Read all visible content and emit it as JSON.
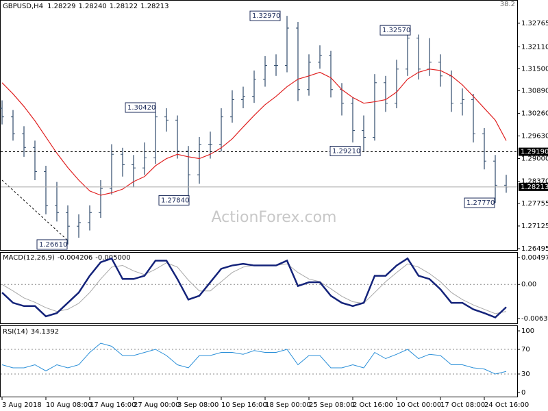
{
  "chart_data": [
    {
      "type": "ohlc",
      "title": "GBPUSD,H4",
      "quote": [
        "1.28229",
        "1.28240",
        "1.28122",
        "1.28213"
      ],
      "corner_label": "38.2",
      "watermark": "ActionForex.com",
      "color": "#2e4a6b",
      "categories": [
        "3 Aug 2018",
        null,
        null,
        null,
        "10 Aug 08:00",
        null,
        null,
        null,
        "17 Aug 16:00",
        null,
        null,
        null,
        "27 Aug 00:00",
        null,
        null,
        null,
        "3 Sep 08:00",
        null,
        null,
        null,
        "10 Sep 16:00",
        null,
        null,
        null,
        "18 Sep 00:00",
        null,
        null,
        null,
        "25 Sep 08:00",
        null,
        null,
        null,
        "2 Oct 16:00",
        null,
        null,
        null,
        "10 Oct 00:00",
        null,
        null,
        null,
        "17 Oct 08:00",
        null,
        null,
        null,
        "24 Oct 16:00",
        null,
        null
      ],
      "open": [
        1.304,
        1.3016,
        1.2969,
        1.2931,
        1.2864,
        1.2769,
        1.275,
        1.2712,
        1.2722,
        1.275,
        1.2817,
        1.2912,
        1.2883,
        1.2874,
        1.2902,
        1.3016,
        1.3007,
        1.2921,
        1.2855,
        1.294,
        1.294,
        1.3016,
        1.3064,
        1.3073,
        1.3121,
        1.3159,
        1.3159,
        1.3263,
        1.3092,
        1.3168,
        1.3187,
        1.3092,
        1.3054,
        1.2978,
        1.2959,
        1.3111,
        1.3054,
        1.3149,
        1.3235,
        1.3149,
        1.3168,
        1.313,
        1.3054,
        1.3064,
        1.2969,
        1.2893,
        1.2826
      ],
      "high": [
        1.3062,
        1.3035,
        1.299,
        1.295,
        1.288,
        1.2835,
        1.277,
        1.2745,
        1.277,
        1.284,
        1.294,
        1.293,
        1.291,
        1.2945,
        1.3042,
        1.304,
        1.302,
        1.2935,
        1.296,
        1.2975,
        1.304,
        1.309,
        1.31,
        1.3145,
        1.3185,
        1.319,
        1.3297,
        1.328,
        1.319,
        1.3215,
        1.32,
        1.311,
        1.307,
        1.302,
        1.3135,
        1.313,
        1.3175,
        1.3257,
        1.3245,
        1.3235,
        1.319,
        1.3145,
        1.3095,
        1.308,
        1.2985,
        1.291,
        1.2855
      ],
      "low": [
        1.2995,
        1.295,
        1.2905,
        1.284,
        1.2745,
        1.2725,
        1.2661,
        1.268,
        1.27,
        1.2735,
        1.28,
        1.285,
        1.282,
        1.2855,
        1.2885,
        1.2975,
        1.29,
        1.2784,
        1.283,
        1.29,
        1.292,
        1.3,
        1.304,
        1.3055,
        1.31,
        1.313,
        1.314,
        1.306,
        1.3075,
        1.315,
        1.307,
        1.302,
        1.2945,
        1.2921,
        1.295,
        1.303,
        1.304,
        1.313,
        1.312,
        1.313,
        1.31,
        1.303,
        1.302,
        1.2945,
        1.287,
        1.2777,
        1.2805
      ],
      "close": [
        1.3016,
        1.2969,
        1.2931,
        1.2864,
        1.2769,
        1.275,
        1.2712,
        1.2722,
        1.275,
        1.2817,
        1.2912,
        1.2883,
        1.2874,
        1.2902,
        1.3016,
        1.3007,
        1.2921,
        1.2855,
        1.294,
        1.294,
        1.3016,
        1.3064,
        1.3073,
        1.3121,
        1.3159,
        1.3159,
        1.3263,
        1.3092,
        1.3168,
        1.3187,
        1.3092,
        1.3054,
        1.2978,
        1.2959,
        1.3111,
        1.3054,
        1.3149,
        1.3235,
        1.3149,
        1.3168,
        1.313,
        1.3054,
        1.3064,
        1.2969,
        1.2893,
        1.2826,
        1.2821
      ],
      "ma": {
        "color": "#e02020",
        "values": [
          1.3111,
          1.308,
          1.3045,
          1.3005,
          1.296,
          1.2915,
          1.2875,
          1.284,
          1.281,
          1.2798,
          1.2805,
          1.2815,
          1.2836,
          1.285,
          1.288,
          1.29,
          1.2912,
          1.2905,
          1.29,
          1.2912,
          1.293,
          1.2955,
          1.2988,
          1.302,
          1.305,
          1.3073,
          1.31,
          1.3121,
          1.313,
          1.314,
          1.3125,
          1.3092,
          1.307,
          1.3054,
          1.3058,
          1.3064,
          1.3085,
          1.3121,
          1.314,
          1.3149,
          1.3145,
          1.313,
          1.3105,
          1.3073,
          1.304,
          1.3007,
          1.295
        ]
      },
      "ylim": [
        1.26457,
        1.33392
      ],
      "yticks": [
        1.32765,
        {
          "value": 1.3211,
          "label": "1.32110"
        },
        {
          "value": 1.315,
          "label": "1.31500"
        },
        {
          "value": 1.3089,
          "label": "1.30890"
        },
        {
          "value": 1.3026,
          "label": "1.30260"
        },
        {
          "value": 1.2963,
          "label": "1.29630"
        },
        {
          "value": 1.29,
          "label": "1.29000"
        },
        {
          "value": 1.2837,
          "label": "1.28370"
        },
        1.27755,
        1.27125,
        1.26495
      ],
      "annotations": [
        {
          "value": 1.3297,
          "label": "1.32970"
        },
        {
          "value": 1.3257,
          "label": "1.32570"
        },
        {
          "value": 1.3042,
          "label": "1.30420"
        },
        {
          "value": 1.2921,
          "label": "1.29210"
        },
        {
          "value": 1.2784,
          "label": "1.27840"
        },
        {
          "value": 1.2777,
          "label": "1.27770"
        },
        {
          "value": 1.2661,
          "label": "1.26610"
        }
      ],
      "hlines": [
        {
          "value": 1.2919,
          "label": "1.29190"
        },
        {
          "value": 1.28213,
          "label": "1.28213"
        }
      ]
    },
    {
      "type": "line",
      "title": "MACD(12,26,9)",
      "readout": [
        "-0.004206",
        "-0.005000"
      ],
      "main": {
        "color": "#14237a",
        "values": [
          -0.0015,
          -0.0034,
          -0.004,
          -0.004,
          -0.0059,
          -0.0053,
          -0.0034,
          -0.0015,
          0.0016,
          0.0041,
          0.0048,
          0.001,
          0.001,
          0.0016,
          0.0044,
          0.0044,
          0.001,
          -0.0028,
          -0.0021,
          0.0004,
          0.0029,
          0.0035,
          0.0038,
          0.0035,
          0.0035,
          0.0035,
          0.0044,
          -0.0003,
          0.0004,
          0.0004,
          -0.0021,
          -0.0034,
          -0.004,
          -0.0034,
          0.0016,
          0.0016,
          0.0035,
          0.0048,
          0.0016,
          0.001,
          -0.0009,
          -0.0034,
          -0.0034,
          -0.0046,
          -0.0053,
          -0.0061,
          -0.0042
        ]
      },
      "signal": {
        "color": "#a8a8a8",
        "values": [
          0.0,
          -0.0012,
          -0.0025,
          -0.0033,
          -0.0043,
          -0.005,
          -0.0046,
          -0.0035,
          -0.0015,
          0.001,
          0.0032,
          0.0035,
          0.0025,
          0.0018,
          0.0028,
          0.004,
          0.0032,
          0.0008,
          -0.0012,
          -0.0012,
          0.0005,
          0.0022,
          0.0032,
          0.0035,
          0.0035,
          0.0035,
          0.0038,
          0.0022,
          0.001,
          0.0005,
          -0.0008,
          -0.0022,
          -0.0032,
          -0.0035,
          -0.0015,
          0.0005,
          0.0022,
          0.0038,
          0.0032,
          0.002,
          0.0005,
          -0.0015,
          -0.0028,
          -0.0038,
          -0.0046,
          -0.0054,
          -0.005
        ]
      },
      "ylim": [
        -0.007189,
        0.005849
      ],
      "yticks": [
        0.004971,
        {
          "value": 0,
          "label": "0.00"
        },
        -0.006311
      ],
      "levels": [
        0
      ]
    },
    {
      "type": "line",
      "title": "RSI(14)",
      "readout": "34.1392",
      "main": {
        "color": "#2a8fd8",
        "values": [
          45,
          40,
          40,
          45,
          35,
          45,
          40,
          45,
          65,
          80,
          75,
          60,
          60,
          65,
          70,
          60,
          45,
          40,
          60,
          60,
          65,
          65,
          62,
          68,
          65,
          65,
          70,
          45,
          60,
          60,
          40,
          40,
          45,
          40,
          65,
          55,
          62,
          70,
          55,
          62,
          60,
          45,
          45,
          40,
          38,
          30,
          34.1392
        ]
      },
      "ylim": [
        -6.7,
        107.8
      ],
      "yticks": [
        100,
        70,
        30,
        0
      ],
      "levels": [
        70,
        30
      ]
    }
  ]
}
